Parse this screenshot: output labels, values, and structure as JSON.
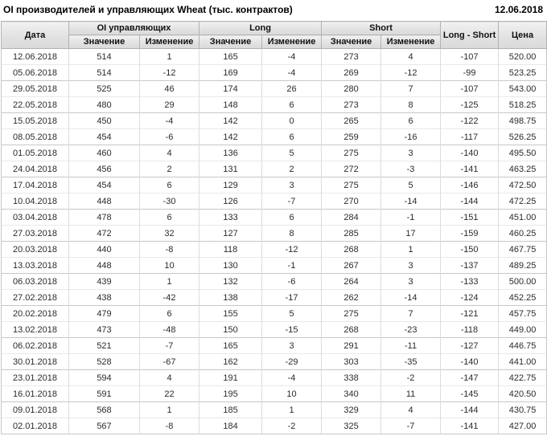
{
  "header": {
    "title": "OI производителей и управляющих Wheat (тыс. контрактов)",
    "report_date": "12.06.2018"
  },
  "colors": {
    "positive_change": "#008000",
    "negative_change": "#cc0000",
    "header_background": "#e2e2e2",
    "grid_border": "#dcdcdc",
    "header_border": "#b2b2b2",
    "text": "#2b2b2b"
  },
  "table": {
    "col_date": "Дата",
    "groups": [
      {
        "label": "OI управляющих"
      },
      {
        "label": "Long"
      },
      {
        "label": "Short"
      }
    ],
    "sub_value": "Значение",
    "sub_change": "Изменение",
    "col_long_short": "Long - Short",
    "col_price": "Цена",
    "rows": [
      {
        "date": "12.06.2018",
        "oi_value": 514,
        "oi_change": 1,
        "long_value": 165,
        "long_change": -4,
        "short_value": 273,
        "short_change": 4,
        "long_short": -107,
        "price": "520.00"
      },
      {
        "date": "05.06.2018",
        "oi_value": 514,
        "oi_change": -12,
        "long_value": 169,
        "long_change": -4,
        "short_value": 269,
        "short_change": -12,
        "long_short": -99,
        "price": "523.25"
      },
      {
        "date": "29.05.2018",
        "oi_value": 525,
        "oi_change": 46,
        "long_value": 174,
        "long_change": 26,
        "short_value": 280,
        "short_change": 7,
        "long_short": -107,
        "price": "543.00"
      },
      {
        "date": "22.05.2018",
        "oi_value": 480,
        "oi_change": 29,
        "long_value": 148,
        "long_change": 6,
        "short_value": 273,
        "short_change": 8,
        "long_short": -125,
        "price": "518.25"
      },
      {
        "date": "15.05.2018",
        "oi_value": 450,
        "oi_change": -4,
        "long_value": 142,
        "long_change": 0,
        "short_value": 265,
        "short_change": 6,
        "long_short": -122,
        "price": "498.75"
      },
      {
        "date": "08.05.2018",
        "oi_value": 454,
        "oi_change": -6,
        "long_value": 142,
        "long_change": 6,
        "short_value": 259,
        "short_change": -16,
        "long_short": -117,
        "price": "526.25"
      },
      {
        "date": "01.05.2018",
        "oi_value": 460,
        "oi_change": 4,
        "long_value": 136,
        "long_change": 5,
        "short_value": 275,
        "short_change": 3,
        "long_short": -140,
        "price": "495.50"
      },
      {
        "date": "24.04.2018",
        "oi_value": 456,
        "oi_change": 2,
        "long_value": 131,
        "long_change": 2,
        "short_value": 272,
        "short_change": -3,
        "long_short": -141,
        "price": "463.25"
      },
      {
        "date": "17.04.2018",
        "oi_value": 454,
        "oi_change": 6,
        "long_value": 129,
        "long_change": 3,
        "short_value": 275,
        "short_change": 5,
        "long_short": -146,
        "price": "472.50"
      },
      {
        "date": "10.04.2018",
        "oi_value": 448,
        "oi_change": -30,
        "long_value": 126,
        "long_change": -7,
        "short_value": 270,
        "short_change": -14,
        "long_short": -144,
        "price": "472.25"
      },
      {
        "date": "03.04.2018",
        "oi_value": 478,
        "oi_change": 6,
        "long_value": 133,
        "long_change": 6,
        "short_value": 284,
        "short_change": -1,
        "long_short": -151,
        "price": "451.00"
      },
      {
        "date": "27.03.2018",
        "oi_value": 472,
        "oi_change": 32,
        "long_value": 127,
        "long_change": 8,
        "short_value": 285,
        "short_change": 17,
        "long_short": -159,
        "price": "460.25"
      },
      {
        "date": "20.03.2018",
        "oi_value": 440,
        "oi_change": -8,
        "long_value": 118,
        "long_change": -12,
        "short_value": 268,
        "short_change": 1,
        "long_short": -150,
        "price": "467.75"
      },
      {
        "date": "13.03.2018",
        "oi_value": 448,
        "oi_change": 10,
        "long_value": 130,
        "long_change": -1,
        "short_value": 267,
        "short_change": 3,
        "long_short": -137,
        "price": "489.25"
      },
      {
        "date": "06.03.2018",
        "oi_value": 439,
        "oi_change": 1,
        "long_value": 132,
        "long_change": -6,
        "short_value": 264,
        "short_change": 3,
        "long_short": -133,
        "price": "500.00"
      },
      {
        "date": "27.02.2018",
        "oi_value": 438,
        "oi_change": -42,
        "long_value": 138,
        "long_change": -17,
        "short_value": 262,
        "short_change": -14,
        "long_short": -124,
        "price": "452.25"
      },
      {
        "date": "20.02.2018",
        "oi_value": 479,
        "oi_change": 6,
        "long_value": 155,
        "long_change": 5,
        "short_value": 275,
        "short_change": 7,
        "long_short": -121,
        "price": "457.75"
      },
      {
        "date": "13.02.2018",
        "oi_value": 473,
        "oi_change": -48,
        "long_value": 150,
        "long_change": -15,
        "short_value": 268,
        "short_change": -23,
        "long_short": -118,
        "price": "449.00"
      },
      {
        "date": "06.02.2018",
        "oi_value": 521,
        "oi_change": -7,
        "long_value": 165,
        "long_change": 3,
        "short_value": 291,
        "short_change": -11,
        "long_short": -127,
        "price": "446.75"
      },
      {
        "date": "30.01.2018",
        "oi_value": 528,
        "oi_change": -67,
        "long_value": 162,
        "long_change": -29,
        "short_value": 303,
        "short_change": -35,
        "long_short": -140,
        "price": "441.00"
      },
      {
        "date": "23.01.2018",
        "oi_value": 594,
        "oi_change": 4,
        "long_value": 191,
        "long_change": -4,
        "short_value": 338,
        "short_change": -2,
        "long_short": -147,
        "price": "422.75"
      },
      {
        "date": "16.01.2018",
        "oi_value": 591,
        "oi_change": 22,
        "long_value": 195,
        "long_change": 10,
        "short_value": 340,
        "short_change": 11,
        "long_short": -145,
        "price": "420.50"
      },
      {
        "date": "09.01.2018",
        "oi_value": 568,
        "oi_change": 1,
        "long_value": 185,
        "long_change": 1,
        "short_value": 329,
        "short_change": 4,
        "long_short": -144,
        "price": "430.75"
      },
      {
        "date": "02.01.2018",
        "oi_value": 567,
        "oi_change": -8,
        "long_value": 184,
        "long_change": -2,
        "short_value": 325,
        "short_change": -7,
        "long_short": -141,
        "price": "427.00"
      }
    ]
  }
}
